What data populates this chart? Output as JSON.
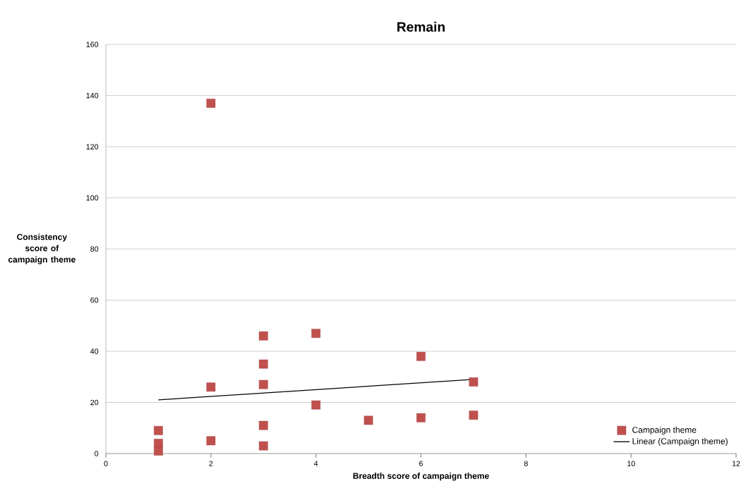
{
  "chart_data": {
    "type": "scatter",
    "title": "Remain",
    "xlabel": "Breadth score of campaign theme",
    "ylabel": "Consistency score of campaign theme",
    "xlim": [
      0,
      12
    ],
    "xticks": [
      0,
      2,
      4,
      6,
      8,
      10,
      12
    ],
    "ylim": [
      0,
      160
    ],
    "yticks": [
      0,
      20,
      40,
      60,
      80,
      100,
      120,
      140,
      160
    ],
    "grid": "y",
    "legend": "bottom right",
    "marker": "square",
    "series": [
      {
        "name": "Campaign theme",
        "color": "#c0504d",
        "x": [
          1,
          1,
          1,
          2,
          2,
          2,
          3,
          3,
          3,
          3,
          3,
          4,
          4,
          5,
          6,
          6,
          7,
          7
        ],
        "values": [
          9,
          4,
          1,
          137,
          26,
          5,
          46,
          35,
          27,
          11,
          3,
          47,
          19,
          13,
          38,
          14,
          28,
          15
        ]
      },
      {
        "name": "Linear (Campaign theme)",
        "type": "line",
        "color": "#000000",
        "x": [
          1,
          7
        ],
        "values": [
          21,
          29
        ],
        "marker": "none",
        "line_style": "solid"
      }
    ]
  }
}
